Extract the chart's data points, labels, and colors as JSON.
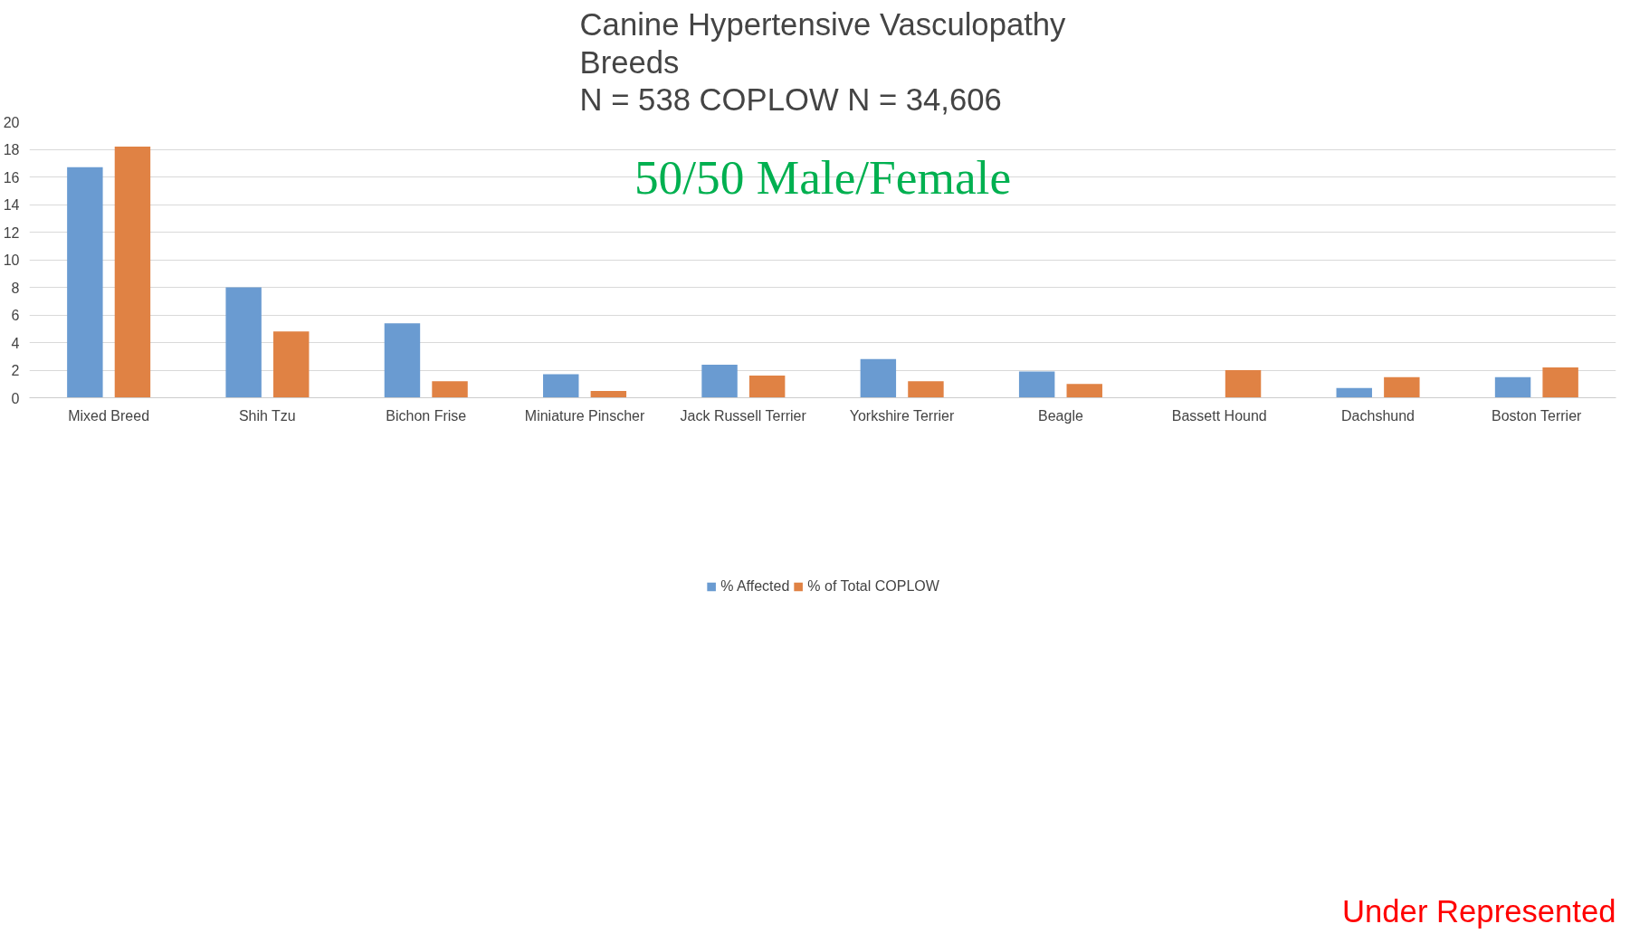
{
  "chart_data": {
    "type": "bar",
    "title": "Canine Hypertensive Vasculopathy\nBreeds\nN = 538   COPLOW  N = 34,606",
    "categories": [
      "Mixed Breed",
      "Shih Tzu",
      "Bichon Frise",
      "Miniature Pinscher",
      "Jack Russell Terrier",
      "Yorkshire Terrier",
      "Beagle",
      "Bassett Hound",
      "Dachshund",
      "Boston Terrier"
    ],
    "series": [
      {
        "name": "% Affected",
        "color": "#6a9bd1",
        "values": [
          16.7,
          8.0,
          5.4,
          1.7,
          2.4,
          2.8,
          1.9,
          0,
          0.7,
          1.5
        ]
      },
      {
        "name": "% of Total COPLOW",
        "color": "#e08244",
        "values": [
          18.2,
          4.8,
          1.2,
          0.5,
          1.6,
          1.2,
          1.0,
          2.0,
          1.5,
          2.2
        ]
      }
    ],
    "ylim": [
      0,
      20
    ],
    "yticks": [
      0,
      2,
      4,
      6,
      8,
      10,
      12,
      14,
      16,
      18,
      20
    ],
    "grid": "y",
    "legend": "bottom",
    "annotations": [
      "50/50 Male/Female",
      "Under Represented"
    ]
  }
}
